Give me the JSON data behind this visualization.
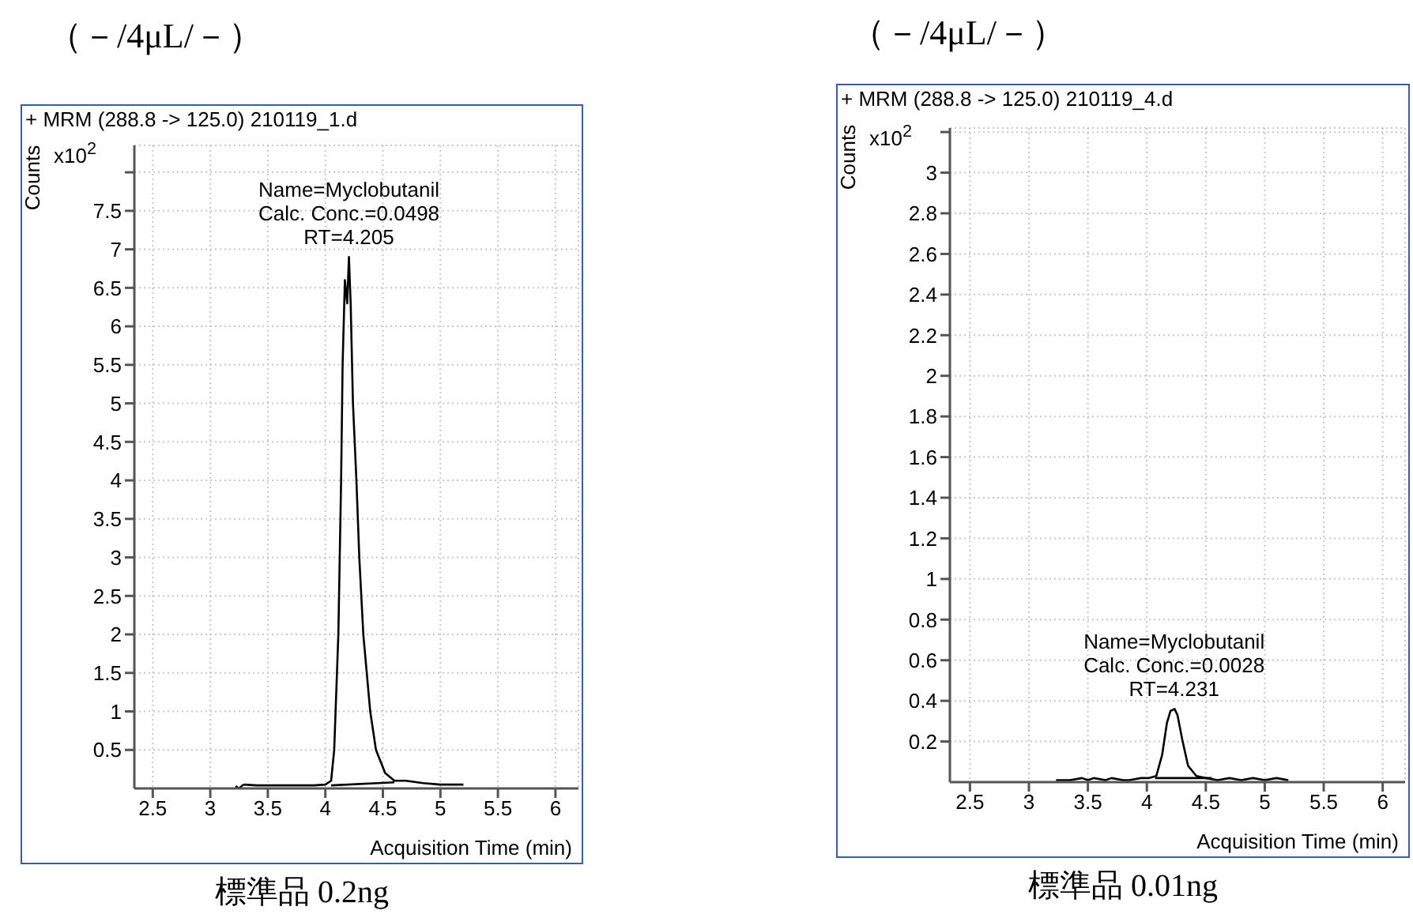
{
  "chart_data": [
    {
      "type": "line",
      "title": "（－/4μL/－）",
      "subtitle": "+ MRM (288.8 -> 125.0) 210119_1.d",
      "xlabel": "Acquisition Time (min)",
      "ylabel": "Counts",
      "xlim": [
        2.34,
        6.2
      ],
      "xticks": [
        2.5,
        3,
        3.5,
        4,
        4.5,
        5,
        5.5,
        6
      ],
      "ylim": [
        0,
        8.35
      ],
      "yticks": [
        0.5,
        1,
        1.5,
        2,
        2.5,
        3,
        3.5,
        4,
        4.5,
        5,
        5.5,
        6,
        6.5,
        7,
        7.5,
        {
          "value": 8,
          "label": null
        }
      ],
      "grid": true,
      "marker": "none",
      "line_style": "solid",
      "annotations": [
        "x10$^{2}$",
        {
          "text": "Name=Myclobutanil\nCalc. Conc.=0.0498\nRT=4.205",
          "x": 4.205,
          "y": 6.9
        },
        "標準品 0.2ng"
      ],
      "series": [
        {
          "color": "#000000",
          "x": [
            3.22,
            3.25,
            3.28,
            3.3,
            3.4,
            3.5,
            3.7,
            3.9,
            4.0,
            4.05,
            4.077,
            4.113,
            4.137,
            4.15,
            4.17,
            4.19,
            4.205,
            4.22,
            4.24,
            4.27,
            4.295,
            4.33,
            4.39,
            4.44,
            4.52,
            4.6,
            4.7,
            4.85,
            5.0,
            5.2
          ],
          "values": [
            0.03,
            0.0,
            0.04,
            0.05,
            0.04,
            0.04,
            0.04,
            0.04,
            0.05,
            0.1,
            0.5,
            2,
            4,
            5.5,
            6.6,
            6.3,
            6.9,
            6.3,
            5,
            4,
            3,
            2,
            1,
            0.5,
            0.2,
            0.1,
            0.1,
            0.07,
            0.05,
            0.05
          ]
        },
        {
          "color": "#000000",
          "x": [
            4.05,
            4.6
          ],
          "values": [
            0.04,
            0.08
          ]
        }
      ]
    },
    {
      "type": "line",
      "title": "（－/4μL/－）",
      "subtitle": "+ MRM (288.8 -> 125.0) 210119_4.d",
      "xlabel": "Acquisition Time (min)",
      "ylabel": "Counts",
      "xlim": [
        2.33,
        6.19
      ],
      "xticks": [
        2.5,
        3,
        3.5,
        4,
        4.5,
        5,
        5.5,
        6
      ],
      "ylim": [
        0,
        3.22
      ],
      "yticks": [
        0.2,
        0.4,
        0.6,
        0.8,
        1,
        1.2,
        1.4,
        1.6,
        1.8,
        2,
        2.2,
        2.4,
        2.6,
        2.8,
        3,
        {
          "value": 3.2,
          "label": null
        }
      ],
      "grid": true,
      "marker": "none",
      "line_style": "solid",
      "annotations": [
        "x10$^{2}$",
        {
          "text": "Name=Myclobutanil\nCalc. Conc.=0.0028\nRT=4.231",
          "x": 4.231,
          "y": 0.36
        },
        "標準品 0.01ng"
      ],
      "series": [
        {
          "color": "#000000",
          "x": [
            3.23,
            3.35,
            3.45,
            3.5,
            3.55,
            3.65,
            3.7,
            3.8,
            3.85,
            3.95,
            4.02,
            4.08,
            4.13,
            4.17,
            4.2,
            4.235,
            4.26,
            4.3,
            4.35,
            4.42,
            4.5,
            4.6,
            4.7,
            4.8,
            4.9,
            5.0,
            5.1,
            5.2
          ],
          "values": [
            0.01,
            0.01,
            0.02,
            0.01,
            0.02,
            0.01,
            0.02,
            0.01,
            0.01,
            0.02,
            0.02,
            0.03,
            0.135,
            0.29,
            0.35,
            0.36,
            0.33,
            0.21,
            0.08,
            0.03,
            0.02,
            0.01,
            0.02,
            0.01,
            0.02,
            0.01,
            0.02,
            0.01
          ]
        },
        {
          "color": "#000000",
          "x": [
            4.07,
            4.55
          ],
          "values": [
            0.02,
            0.02
          ]
        }
      ]
    }
  ]
}
